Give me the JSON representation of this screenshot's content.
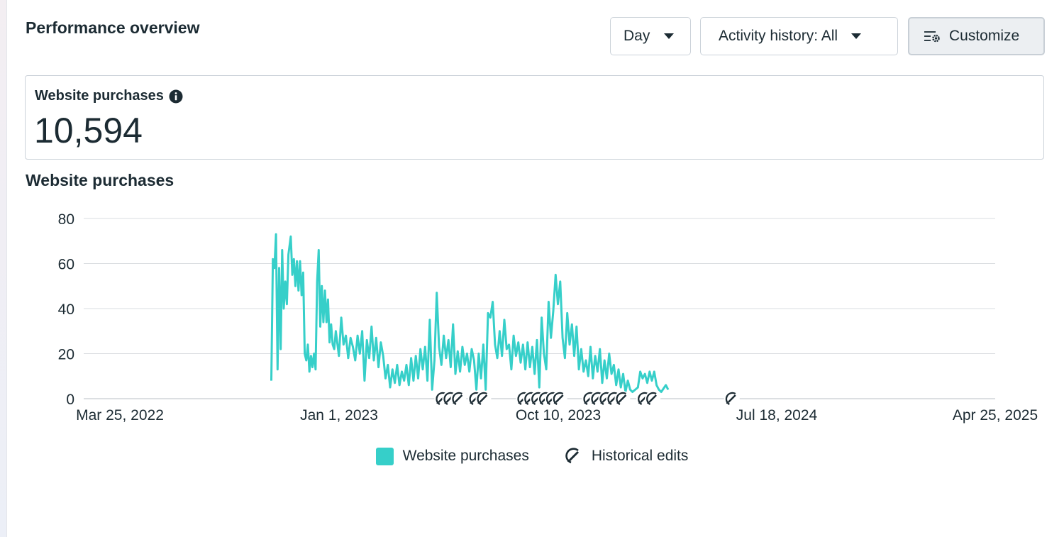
{
  "header": {
    "title": "Performance overview",
    "day_label": "Day",
    "history_label": "Activity history: All",
    "customize_label": "Customize"
  },
  "metric": {
    "label": "Website purchases",
    "value": "10,594"
  },
  "chart_section": {
    "title": "Website purchases"
  },
  "legend": {
    "purchases_label": "Website purchases",
    "edits_label": "Historical edits"
  },
  "icons": {
    "dropdown": "caret-down-icon",
    "customize": "sliders-gear-icon",
    "info": "info-icon",
    "edit": "historical-edit-icon"
  },
  "colors": {
    "series": "#36cfc9",
    "text": "#1c2b33",
    "grid": "#dadde1",
    "button_border": "#cbd2d9"
  },
  "chart_data": {
    "type": "line",
    "title": "Website purchases",
    "xlabel": "",
    "ylabel": "",
    "x_range": [
      "2022-03-25",
      "2025-04-25"
    ],
    "x_ticks": [
      "Mar 25, 2022",
      "Jan 1, 2023",
      "Oct 10, 2023",
      "Jul 18, 2024",
      "Apr 25, 2025"
    ],
    "ylim": [
      0,
      80
    ],
    "y_ticks": [
      0,
      20,
      40,
      60,
      80
    ],
    "grid": true,
    "legend_position": "bottom",
    "series": [
      {
        "name": "Website purchases",
        "points": [
          [
            "2022-10-06",
            8
          ],
          [
            "2022-10-08",
            62
          ],
          [
            "2022-10-10",
            58
          ],
          [
            "2022-10-12",
            73
          ],
          [
            "2022-10-14",
            13
          ],
          [
            "2022-10-16",
            58
          ],
          [
            "2022-10-18",
            22
          ],
          [
            "2022-10-20",
            66
          ],
          [
            "2022-10-22",
            40
          ],
          [
            "2022-10-24",
            52
          ],
          [
            "2022-10-26",
            42
          ],
          [
            "2022-10-28",
            64
          ],
          [
            "2022-10-31",
            72
          ],
          [
            "2022-11-02",
            55
          ],
          [
            "2022-11-04",
            62
          ],
          [
            "2022-11-06",
            50
          ],
          [
            "2022-11-08",
            61
          ],
          [
            "2022-11-10",
            48
          ],
          [
            "2022-11-12",
            61
          ],
          [
            "2022-11-14",
            46
          ],
          [
            "2022-11-16",
            56
          ],
          [
            "2022-11-18",
            20
          ],
          [
            "2022-11-20",
            17
          ],
          [
            "2022-11-22",
            24
          ],
          [
            "2022-11-24",
            12
          ],
          [
            "2022-11-26",
            19
          ],
          [
            "2022-11-28",
            14
          ],
          [
            "2022-11-30",
            20
          ],
          [
            "2022-12-02",
            13
          ],
          [
            "2022-12-04",
            52
          ],
          [
            "2022-12-06",
            66
          ],
          [
            "2022-12-08",
            32
          ],
          [
            "2022-12-10",
            50
          ],
          [
            "2022-12-12",
            34
          ],
          [
            "2022-12-14",
            48
          ],
          [
            "2022-12-16",
            34
          ],
          [
            "2022-12-18",
            44
          ],
          [
            "2022-12-20",
            25
          ],
          [
            "2022-12-22",
            33
          ],
          [
            "2022-12-24",
            24
          ],
          [
            "2022-12-26",
            22
          ],
          [
            "2022-12-28",
            30
          ],
          [
            "2023-01-01",
            19
          ],
          [
            "2023-01-04",
            36
          ],
          [
            "2023-01-07",
            24
          ],
          [
            "2023-01-10",
            28
          ],
          [
            "2023-01-13",
            18
          ],
          [
            "2023-01-16",
            27
          ],
          [
            "2023-01-19",
            23
          ],
          [
            "2023-01-22",
            17
          ],
          [
            "2023-01-25",
            28
          ],
          [
            "2023-01-28",
            20
          ],
          [
            "2023-01-31",
            30
          ],
          [
            "2023-02-03",
            8
          ],
          [
            "2023-02-06",
            26
          ],
          [
            "2023-02-09",
            18
          ],
          [
            "2023-02-12",
            32
          ],
          [
            "2023-02-15",
            17
          ],
          [
            "2023-02-18",
            27
          ],
          [
            "2023-02-21",
            14
          ],
          [
            "2023-02-24",
            25
          ],
          [
            "2023-02-27",
            19
          ],
          [
            "2023-03-02",
            9
          ],
          [
            "2023-03-05",
            15
          ],
          [
            "2023-03-08",
            5
          ],
          [
            "2023-03-11",
            13
          ],
          [
            "2023-03-14",
            7
          ],
          [
            "2023-03-17",
            15
          ],
          [
            "2023-03-20",
            6
          ],
          [
            "2023-03-23",
            12
          ],
          [
            "2023-03-26",
            8
          ],
          [
            "2023-03-29",
            15
          ],
          [
            "2023-04-01",
            6
          ],
          [
            "2023-04-04",
            18
          ],
          [
            "2023-04-07",
            8
          ],
          [
            "2023-04-10",
            19
          ],
          [
            "2023-04-13",
            9
          ],
          [
            "2023-04-16",
            22
          ],
          [
            "2023-04-19",
            13
          ],
          [
            "2023-04-22",
            23
          ],
          [
            "2023-04-25",
            8
          ],
          [
            "2023-04-28",
            35
          ],
          [
            "2023-05-01",
            4
          ],
          [
            "2023-05-04",
            17
          ],
          [
            "2023-05-07",
            47
          ],
          [
            "2023-05-10",
            23
          ],
          [
            "2023-05-13",
            15
          ],
          [
            "2023-05-16",
            28
          ],
          [
            "2023-05-19",
            18
          ],
          [
            "2023-05-22",
            26
          ],
          [
            "2023-05-25",
            14
          ],
          [
            "2023-05-28",
            33
          ],
          [
            "2023-05-31",
            11
          ],
          [
            "2023-06-03",
            21
          ],
          [
            "2023-06-06",
            12
          ],
          [
            "2023-06-09",
            23
          ],
          [
            "2023-06-12",
            15
          ],
          [
            "2023-06-15",
            20
          ],
          [
            "2023-06-18",
            12
          ],
          [
            "2023-06-21",
            22
          ],
          [
            "2023-06-24",
            17
          ],
          [
            "2023-06-27",
            4
          ],
          [
            "2023-06-30",
            20
          ],
          [
            "2023-07-03",
            9
          ],
          [
            "2023-07-06",
            24
          ],
          [
            "2023-07-09",
            4
          ],
          [
            "2023-07-12",
            38
          ],
          [
            "2023-07-15",
            36
          ],
          [
            "2023-07-18",
            43
          ],
          [
            "2023-07-21",
            24
          ],
          [
            "2023-07-24",
            18
          ],
          [
            "2023-07-27",
            30
          ],
          [
            "2023-07-30",
            19
          ],
          [
            "2023-08-02",
            35
          ],
          [
            "2023-08-05",
            22
          ],
          [
            "2023-08-08",
            24
          ],
          [
            "2023-08-11",
            13
          ],
          [
            "2023-08-14",
            28
          ],
          [
            "2023-08-17",
            19
          ],
          [
            "2023-08-20",
            25
          ],
          [
            "2023-08-23",
            16
          ],
          [
            "2023-08-26",
            24
          ],
          [
            "2023-08-29",
            13
          ],
          [
            "2023-09-01",
            25
          ],
          [
            "2023-09-04",
            14
          ],
          [
            "2023-09-07",
            23
          ],
          [
            "2023-09-10",
            11
          ],
          [
            "2023-09-13",
            26
          ],
          [
            "2023-09-16",
            5
          ],
          [
            "2023-09-19",
            36
          ],
          [
            "2023-09-22",
            20
          ],
          [
            "2023-09-25",
            13
          ],
          [
            "2023-09-28",
            43
          ],
          [
            "2023-10-01",
            27
          ],
          [
            "2023-10-04",
            39
          ],
          [
            "2023-10-07",
            55
          ],
          [
            "2023-10-10",
            42
          ],
          [
            "2023-10-13",
            52
          ],
          [
            "2023-10-16",
            27
          ],
          [
            "2023-10-19",
            18
          ],
          [
            "2023-10-22",
            38
          ],
          [
            "2023-10-25",
            24
          ],
          [
            "2023-10-28",
            33
          ],
          [
            "2023-10-31",
            19
          ],
          [
            "2023-11-03",
            32
          ],
          [
            "2023-11-06",
            13
          ],
          [
            "2023-11-09",
            22
          ],
          [
            "2023-11-12",
            12
          ],
          [
            "2023-11-15",
            17
          ],
          [
            "2023-11-18",
            10
          ],
          [
            "2023-11-21",
            23
          ],
          [
            "2023-11-24",
            9
          ],
          [
            "2023-11-27",
            19
          ],
          [
            "2023-11-30",
            12
          ],
          [
            "2023-12-03",
            22
          ],
          [
            "2023-12-06",
            7
          ],
          [
            "2023-12-09",
            17
          ],
          [
            "2023-12-12",
            9
          ],
          [
            "2023-12-15",
            20
          ],
          [
            "2023-12-18",
            11
          ],
          [
            "2023-12-21",
            15
          ],
          [
            "2023-12-24",
            6
          ],
          [
            "2023-12-27",
            13
          ],
          [
            "2023-12-30",
            5
          ],
          [
            "2024-01-02",
            11
          ],
          [
            "2024-01-05",
            3
          ],
          [
            "2024-01-08",
            8
          ],
          [
            "2024-01-11",
            4
          ],
          [
            "2024-01-14",
            3
          ],
          [
            "2024-01-21",
            5
          ],
          [
            "2024-01-24",
            12
          ],
          [
            "2024-01-27",
            9
          ],
          [
            "2024-01-30",
            11
          ],
          [
            "2024-02-02",
            7
          ],
          [
            "2024-02-05",
            12
          ],
          [
            "2024-02-08",
            8
          ],
          [
            "2024-02-11",
            12
          ],
          [
            "2024-02-14",
            6
          ],
          [
            "2024-02-17",
            4
          ],
          [
            "2024-02-20",
            3
          ],
          [
            "2024-02-26",
            6
          ],
          [
            "2024-02-29",
            4
          ]
        ]
      }
    ],
    "historical_edits": [
      "2023-05-14",
      "2023-05-24",
      "2023-06-04",
      "2023-06-26",
      "2023-07-06",
      "2023-08-27",
      "2023-09-05",
      "2023-09-14",
      "2023-09-24",
      "2023-10-03",
      "2023-10-12",
      "2023-11-20",
      "2023-11-30",
      "2023-12-11",
      "2023-12-21",
      "2024-01-01",
      "2024-01-29",
      "2024-02-09",
      "2024-05-21"
    ]
  }
}
